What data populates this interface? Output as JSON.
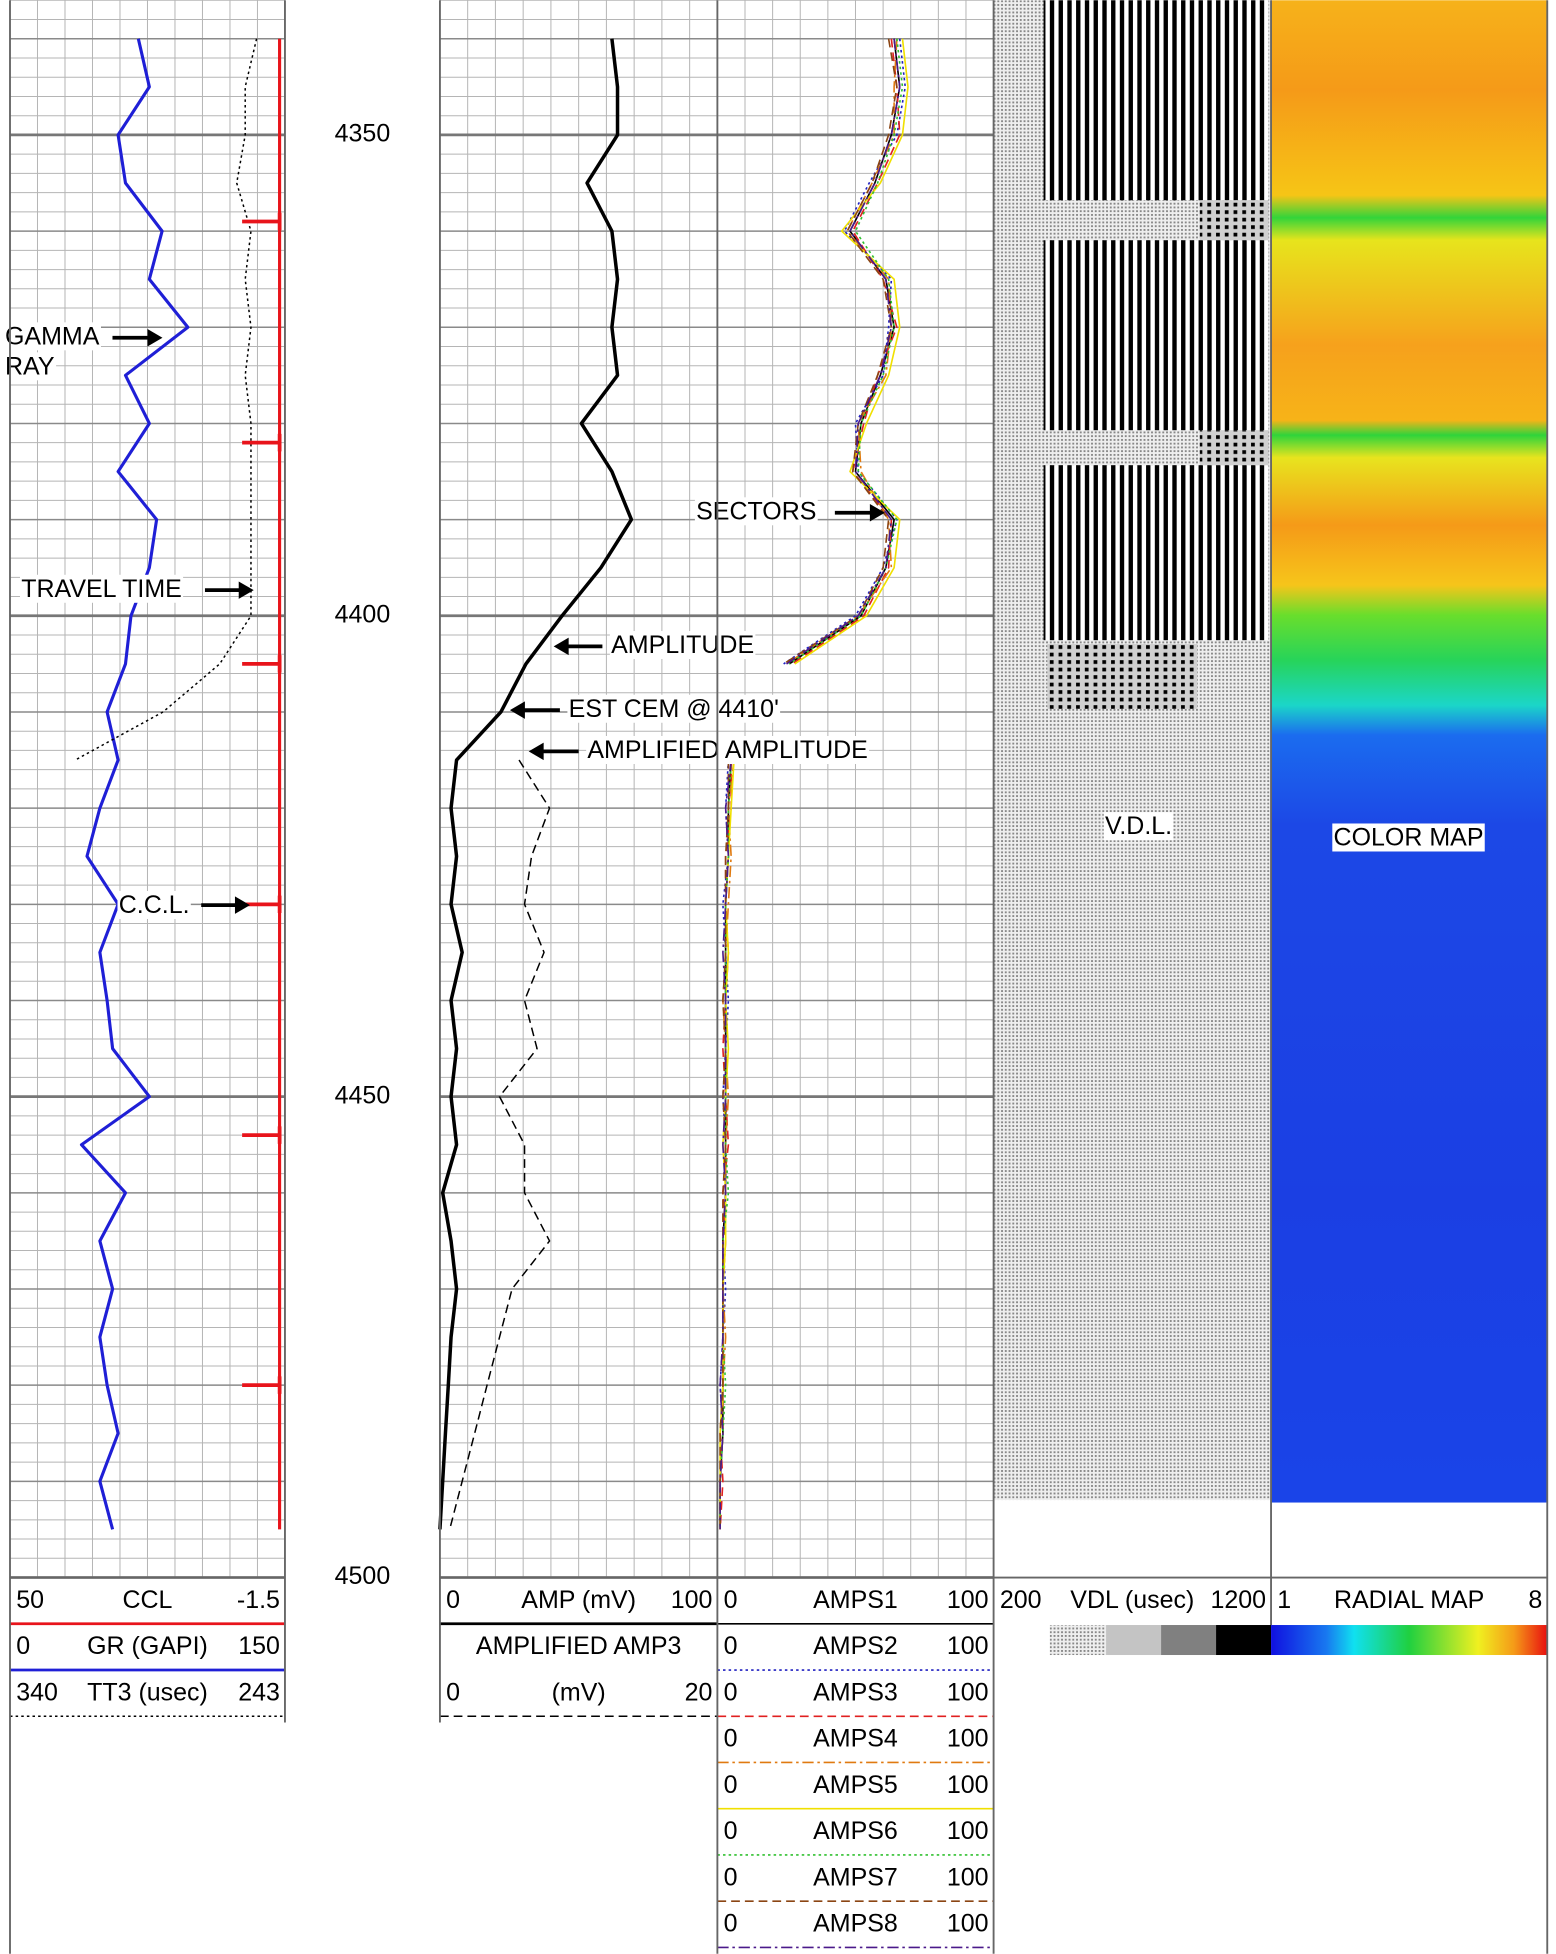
{
  "chart_data": {
    "type": "well-log",
    "x": [
      4340,
      4345,
      4350,
      4355,
      4360,
      4365,
      4370,
      4375,
      4380,
      4385,
      4390,
      4395,
      4400,
      4405,
      4410,
      4415,
      4420,
      4425,
      4430,
      4435,
      4440,
      4445,
      4450,
      4455,
      4460,
      4465,
      4470,
      4475,
      4480,
      4485,
      4490,
      4495
    ],
    "ylim": [
      4336,
      4500
    ],
    "yticks": [
      4350,
      4400,
      4450,
      4500
    ],
    "grid": true,
    "series": [
      {
        "name": "CCL",
        "track": 0,
        "color": "#e8141b",
        "style": "solid",
        "width": 2.5,
        "scale": [
          50,
          -1.5
        ],
        "values": [
          -0.5,
          -0.5,
          -0.5,
          -0.5,
          -0.5,
          -0.5,
          -0.5,
          -0.5,
          -0.5,
          -0.5,
          -0.5,
          -0.5,
          -0.5,
          -0.5,
          -0.5,
          -0.5,
          -0.5,
          -0.5,
          -0.5,
          -0.5,
          -0.5,
          -0.5,
          -0.5,
          -0.5,
          -0.5,
          -0.5,
          -0.5,
          -0.5,
          -0.5,
          -0.5,
          -0.5,
          -0.5
        ]
      },
      {
        "name": "GR (GAPI)",
        "track": 0,
        "color": "#1f1fd6",
        "style": "solid",
        "width": 2.5,
        "scale": [
          0,
          150
        ],
        "values": [
          70,
          76,
          59,
          63,
          83,
          76,
          97,
          63,
          76,
          59,
          80,
          76,
          66,
          63,
          53,
          59,
          49,
          42,
          59,
          49,
          53,
          56,
          76,
          39,
          63,
          49,
          56,
          49,
          53,
          59,
          49,
          56
        ]
      },
      {
        "name": "TT3 (usec)",
        "track": 0,
        "color": "#000000",
        "style": "dotted",
        "width": 1.2,
        "scale": [
          340,
          243
        ],
        "values": [
          253,
          257,
          257,
          260,
          255,
          257,
          255,
          257,
          255,
          255,
          255,
          255,
          255,
          266,
          286,
          317,
          null,
          null,
          null,
          null,
          null,
          null,
          null,
          null,
          null,
          null,
          null,
          null,
          null,
          null,
          null,
          null
        ]
      },
      {
        "name": "AMP (mV)",
        "track": 1,
        "color": "#000000",
        "style": "solid",
        "width": 2.8,
        "scale": [
          0,
          100
        ],
        "values": [
          62,
          64,
          64,
          53,
          62,
          64,
          62,
          64,
          51,
          62,
          69,
          58,
          44,
          31,
          22,
          6,
          4,
          6,
          4,
          8,
          4,
          6,
          4,
          6,
          1,
          4,
          6,
          4,
          3,
          2,
          1,
          0
        ]
      },
      {
        "name": "AMPLIFIED AMP3",
        "unit": "(mV)",
        "track": 1,
        "color": "#000000",
        "style": "dashed",
        "width": 1.2,
        "scale": [
          0,
          20
        ],
        "values": [
          null,
          null,
          null,
          null,
          null,
          null,
          null,
          null,
          null,
          null,
          null,
          null,
          null,
          null,
          null,
          5.7,
          7.9,
          6.6,
          6.1,
          7.5,
          6.1,
          7.0,
          4.3,
          6.1,
          6.1,
          7.9,
          5.2,
          4.3,
          3.4,
          2.5,
          1.6,
          0.7
        ]
      },
      {
        "name": "AMPS1",
        "track": 2,
        "color": "#000000",
        "style": "solid",
        "width": 1.3,
        "scale": [
          0,
          100
        ],
        "values": [
          64,
          66,
          63,
          57,
          48,
          61,
          64,
          59,
          52,
          50,
          64,
          61,
          52,
          26,
          null,
          5,
          4,
          4,
          3,
          3,
          3,
          3,
          3,
          3,
          3,
          2,
          2,
          2,
          2,
          2,
          1,
          1
        ]
      },
      {
        "name": "AMPS2",
        "track": 2,
        "color": "#2020c0",
        "style": "dotted",
        "width": 1.3,
        "scale": [
          0,
          100
        ],
        "values": [
          66,
          68,
          65,
          55,
          46,
          63,
          62,
          60,
          50,
          51,
          65,
          60,
          50,
          24,
          null,
          4,
          3,
          4,
          2,
          3,
          4,
          3,
          2,
          3,
          3,
          2,
          3,
          2,
          1,
          2,
          1,
          1
        ]
      },
      {
        "name": "AMPS3",
        "track": 2,
        "color": "#e02020",
        "style": "dashed",
        "width": 1.3,
        "scale": [
          0,
          100
        ],
        "values": [
          63,
          65,
          66,
          58,
          49,
          60,
          65,
          58,
          53,
          49,
          63,
          62,
          53,
          27,
          null,
          5,
          5,
          3,
          3,
          4,
          3,
          2,
          3,
          4,
          2,
          3,
          2,
          2,
          2,
          1,
          2,
          1
        ]
      },
      {
        "name": "AMPS4",
        "track": 2,
        "color": "#e07a10",
        "style": "dashdot",
        "width": 1.3,
        "scale": [
          0,
          100
        ],
        "values": [
          65,
          64,
          64,
          56,
          47,
          62,
          63,
          61,
          51,
          52,
          62,
          63,
          51,
          25,
          null,
          6,
          4,
          5,
          4,
          3,
          2,
          3,
          4,
          3,
          3,
          2,
          2,
          3,
          2,
          2,
          1,
          1
        ]
      },
      {
        "name": "AMPS5",
        "track": 2,
        "color": "#f0e000",
        "style": "solid",
        "width": 1.3,
        "scale": [
          0,
          100
        ],
        "values": [
          67,
          69,
          67,
          59,
          45,
          64,
          66,
          62,
          54,
          48,
          66,
          64,
          54,
          28,
          null,
          6,
          5,
          4,
          3,
          4,
          3,
          4,
          3,
          2,
          3,
          3,
          2,
          2,
          2,
          1,
          1,
          1
        ]
      },
      {
        "name": "AMPS6",
        "track": 2,
        "color": "#30c030",
        "style": "dotted",
        "width": 1.3,
        "scale": [
          0,
          100
        ],
        "values": [
          65,
          67,
          64,
          58,
          50,
          62,
          64,
          60,
          52,
          51,
          65,
          61,
          52,
          26,
          null,
          5,
          4,
          4,
          3,
          3,
          3,
          3,
          3,
          3,
          4,
          2,
          2,
          2,
          3,
          2,
          1,
          1
        ]
      },
      {
        "name": "AMPS7",
        "track": 2,
        "color": "#8b4513",
        "style": "dashed",
        "width": 1.3,
        "scale": [
          0,
          100
        ],
        "values": [
          62,
          65,
          62,
          56,
          47,
          60,
          63,
          58,
          51,
          49,
          62,
          60,
          51,
          24,
          null,
          4,
          4,
          3,
          3,
          3,
          2,
          3,
          2,
          3,
          2,
          2,
          2,
          2,
          2,
          1,
          1,
          1
        ]
      },
      {
        "name": "AMPS8",
        "track": 2,
        "color": "#4b1a8a",
        "style": "dashdot",
        "width": 1.3,
        "scale": [
          0,
          100
        ],
        "values": [
          64,
          66,
          63,
          57,
          48,
          61,
          63,
          59,
          51,
          50,
          63,
          61,
          51,
          25,
          null,
          5,
          3,
          4,
          3,
          2,
          3,
          3,
          3,
          2,
          3,
          2,
          2,
          2,
          1,
          2,
          1,
          1
        ]
      }
    ],
    "ccl_collars": [
      4359,
      4382,
      4405,
      4430,
      4454,
      4480
    ],
    "vdl": {
      "name": "VDL (usec)",
      "scale": [
        200,
        1200
      ]
    },
    "radial_map": {
      "name": "RADIAL MAP",
      "scale": [
        1,
        8
      ]
    },
    "annotations": [
      [
        "GAMMA",
        "RAY"
      ],
      [
        "TRAVEL TIME"
      ],
      [
        "C.C.L."
      ],
      [
        "AMPLITUDE"
      ],
      [
        "EST CEM @ 4410'"
      ],
      [
        "AMPLIFIED AMPLITUDE"
      ],
      [
        "SECTORS"
      ],
      [
        "V.D.L."
      ],
      [
        "COLOR MAP"
      ]
    ]
  }
}
